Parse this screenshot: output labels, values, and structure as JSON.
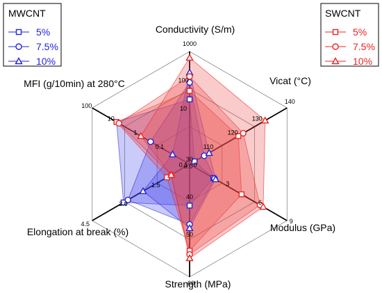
{
  "chart_data": {
    "type": "radar",
    "axes": [
      {
        "label": "Conductivity (S/m)",
        "scale": "log",
        "min": 0.1,
        "max": 1000,
        "ticks": [
          {
            "value": 0.1,
            "label": "0.1"
          },
          {
            "value": 10,
            "label": "10"
          },
          {
            "value": 100,
            "label": "100"
          },
          {
            "value": 1000,
            "label": "1000"
          }
        ]
      },
      {
        "label": "Vicat (°C)",
        "scale": "linear",
        "min": 100,
        "max": 140,
        "ticks": [
          {
            "value": 110,
            "label": "110"
          },
          {
            "value": 120,
            "label": "120"
          },
          {
            "value": 130,
            "label": "130"
          },
          {
            "value": 140,
            "label": "140"
          }
        ]
      },
      {
        "label": "Modulus (GPa)",
        "scale": "linear",
        "min": 0,
        "max": 9,
        "ticks": [
          {
            "value": 0,
            "label": "0"
          },
          {
            "value": 3,
            "label": "3"
          },
          {
            "value": 6,
            "label": "6"
          },
          {
            "value": 9,
            "label": "9"
          }
        ]
      },
      {
        "label": "Strength (MPa)",
        "scale": "linear",
        "min": 30,
        "max": 60,
        "ticks": [
          {
            "value": 30,
            "label": "30"
          },
          {
            "value": 40,
            "label": "40"
          },
          {
            "value": 50,
            "label": "50"
          },
          {
            "value": 60,
            "label": "60"
          }
        ]
      },
      {
        "label": "Elongation at break (%)",
        "scale": "linear",
        "min": 0,
        "max": 4.5,
        "ticks": [
          {
            "value": 0,
            "label": "0.0"
          },
          {
            "value": 1.5,
            "label": "1.5"
          },
          {
            "value": 3.0,
            "label": "3.0"
          },
          {
            "value": 4.5,
            "label": "4.5"
          }
        ]
      },
      {
        "label": "MFI (g/10min) at 280°C",
        "scale": "log",
        "min": 0.01,
        "max": 100,
        "ticks": [
          {
            "value": 0.1,
            "label": "0.1"
          },
          {
            "value": 1,
            "label": "1"
          },
          {
            "value": 10,
            "label": "10"
          },
          {
            "value": 100,
            "label": "100"
          }
        ]
      }
    ],
    "legends": [
      {
        "title": "MWCNT",
        "position": "top-left",
        "color": "#2222dd",
        "entries": [
          {
            "label": "5%",
            "marker": "square"
          },
          {
            "label": "7.5%",
            "marker": "circle"
          },
          {
            "label": "10%",
            "marker": "triangle"
          }
        ]
      },
      {
        "title": "SWCNT",
        "position": "top-right",
        "color": "#ee2222",
        "entries": [
          {
            "label": "5%",
            "marker": "square"
          },
          {
            "label": "7.5%",
            "marker": "circle"
          },
          {
            "label": "10%",
            "marker": "triangle"
          }
        ]
      }
    ],
    "series": [
      {
        "group": "MWCNT",
        "name": "5%",
        "marker": "square",
        "color": "#2222dd",
        "fill": "#4444ee",
        "values": [
          20,
          102,
          2.2,
          41,
          3.05,
          10
        ]
      },
      {
        "group": "MWCNT",
        "name": "7.5%",
        "marker": "circle",
        "color": "#2222dd",
        "fill": "#4444ee",
        "values": [
          80,
          106,
          2.3,
          46,
          2.85,
          0.4
        ]
      },
      {
        "group": "MWCNT",
        "name": "10%",
        "marker": "triangle",
        "color": "#2222dd",
        "fill": "#4444ee",
        "values": [
          180,
          108,
          2.4,
          47,
          2.15,
          0.05
        ]
      },
      {
        "group": "SWCNT",
        "name": "5%",
        "marker": "square",
        "color": "#ee2222",
        "fill": "#ee4444",
        "values": [
          40,
          120,
          4.8,
          53,
          1.05,
          10
        ]
      },
      {
        "group": "SWCNT",
        "name": "7.5%",
        "marker": "circle",
        "color": "#ee2222",
        "fill": "#ee4444",
        "values": [
          130,
          122,
          6.5,
          54,
          0.85,
          8
        ]
      },
      {
        "group": "SWCNT",
        "name": "10%",
        "marker": "triangle",
        "color": "#ee2222",
        "fill": "#ee4444",
        "values": [
          600,
          131,
          6.8,
          55,
          0.85,
          1
        ]
      }
    ],
    "grid": "on"
  }
}
